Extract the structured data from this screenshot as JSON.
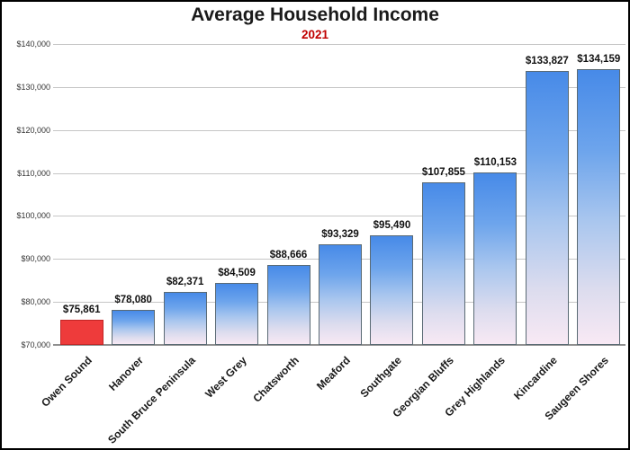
{
  "header": {
    "title": "Average Household Income",
    "subtitle": "2021",
    "title_color": "#1a1a1a",
    "subtitle_color": "#c00000"
  },
  "chart_data": {
    "type": "bar",
    "title": "Average Household Income",
    "subtitle": "2021",
    "categories": [
      "Owen Sound",
      "Hanover",
      "South Bruce Peninsula",
      "West Grey",
      "Chatsworth",
      "Meaford",
      "Southgate",
      "Georgian Bluffs",
      "Grey Highlands",
      "Kincardine",
      "Saugeen Shores"
    ],
    "values": [
      75861,
      78080,
      82371,
      84509,
      88666,
      93329,
      95490,
      107855,
      110153,
      133827,
      134159
    ],
    "value_labels": [
      "$75,861",
      "$78,080",
      "$82,371",
      "$84,509",
      "$88,666",
      "$93,329",
      "$95,490",
      "$107,855",
      "$110,153",
      "$133,827",
      "$134,159"
    ],
    "xlabel": "",
    "ylabel": "",
    "ylim": [
      70000,
      140000
    ],
    "ytick_interval": 10000,
    "ytick_labels": [
      "$70,000",
      "$80,000",
      "$90,000",
      "$100,000",
      "$110,000",
      "$120,000",
      "$130,000",
      "$140,000"
    ],
    "grid": true,
    "legend_position": "none",
    "highlight_index": 0,
    "colors": {
      "bar_gradient_top": "#478ae8",
      "bar_gradient_mid": "#a9c6ee",
      "bar_gradient_bottom": "#f8e9f4",
      "bar_border": "#5a6a74",
      "highlight_fill": "#ee3b3b",
      "highlight_border": "#c22525",
      "gridline": "#c6c6c6",
      "axis_line": "#8f8f8f",
      "tick_label_color": "#333333",
      "value_label_color": "#111111",
      "category_label_color": "#1a1a1a"
    }
  }
}
